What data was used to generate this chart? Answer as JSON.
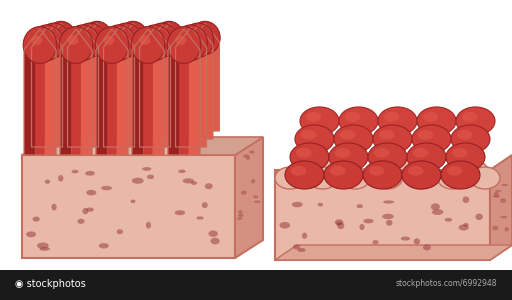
{
  "bg_color": "#ffffff",
  "tissue_color": "#e8b8a8",
  "tissue_edge": "#c47060",
  "tissue_side": "#d49080",
  "tissue_top": "#d4a090",
  "villi_dark": "#8b1a1a",
  "villi_mid": "#c03030",
  "villi_bright": "#e05545",
  "villi_highlight": "#e87060",
  "villi_shadow": "#6b1010",
  "gap_color": "#d4886878",
  "hole_color": "#9b4040",
  "watermark_bg": "#222222",
  "watermark_text": "#ffffff"
}
